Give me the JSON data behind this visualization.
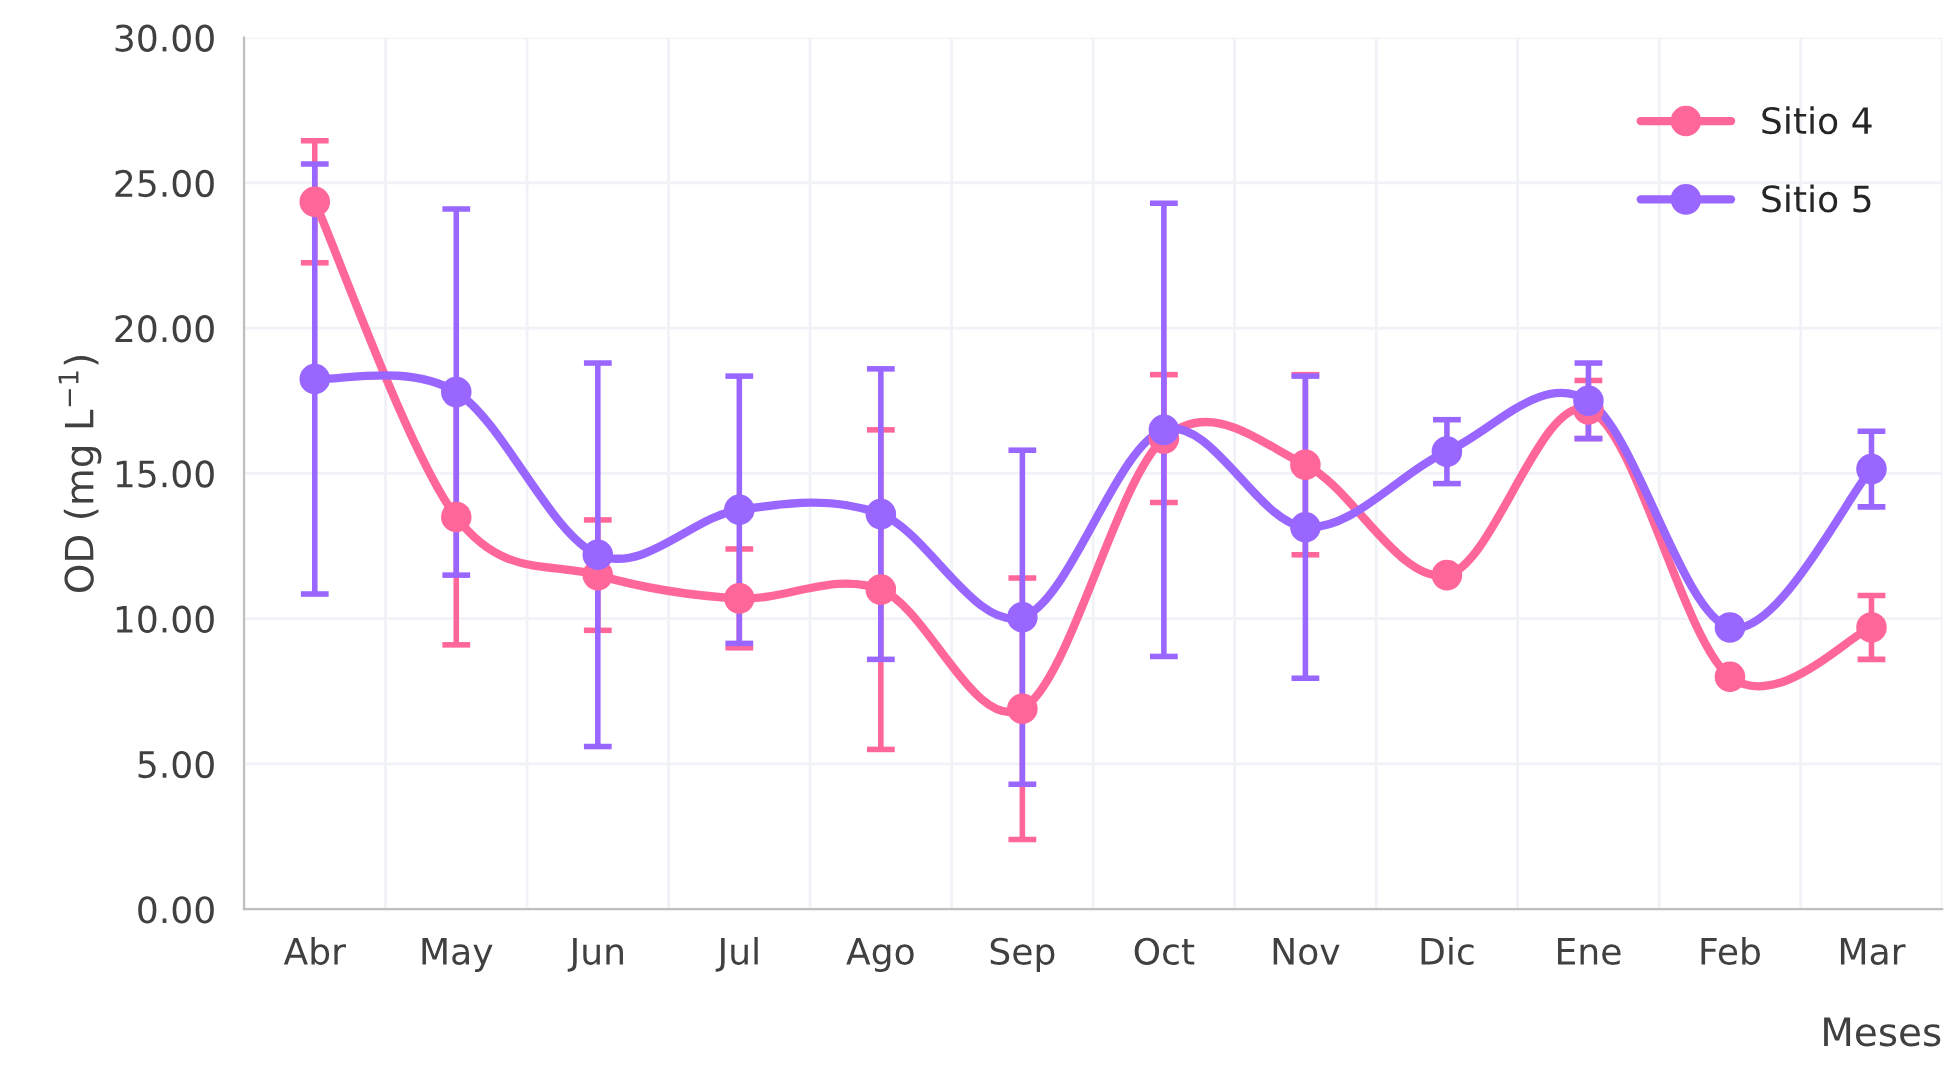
{
  "chart_data": {
    "type": "line",
    "xlabel": "Meses",
    "ylabel": "OD (mg L$^{−1}$)",
    "categories": [
      "Abr",
      "May",
      "Jun",
      "Jul",
      "Ago",
      "Sep",
      "Oct",
      "Nov",
      "Dic",
      "Ene",
      "Feb",
      "Mar"
    ],
    "ylim": [
      0,
      30
    ],
    "yticks": [
      {
        "value": 0,
        "label": "0.00"
      },
      {
        "value": 5,
        "label": "5.00"
      },
      {
        "value": 10,
        "label": "10.00"
      },
      {
        "value": 15,
        "label": "15.00"
      },
      {
        "value": 20,
        "label": "20.00"
      },
      {
        "value": 25,
        "label": "25.00"
      },
      {
        "value": 30,
        "label": "30.00"
      }
    ],
    "grid": true,
    "legend": "top right",
    "marker": "circle",
    "line_style": "solid",
    "series": [
      {
        "name": "Sitio 4",
        "color": "#ff6699",
        "values": [
          24.35,
          13.5,
          11.5,
          10.7,
          11.0,
          6.9,
          16.2,
          15.3,
          11.5,
          17.2,
          8.0,
          9.7
        ],
        "errors": [
          2.1,
          4.4,
          1.9,
          1.7,
          5.5,
          4.5,
          2.2,
          3.1,
          null,
          1.0,
          null,
          1.1
        ]
      },
      {
        "name": "Sitio 5",
        "color": "#9966ff",
        "values": [
          18.25,
          17.8,
          12.2,
          13.75,
          13.6,
          10.05,
          16.5,
          13.15,
          15.75,
          17.5,
          9.7,
          15.15
        ],
        "errors": [
          7.4,
          6.3,
          6.6,
          4.6,
          5.0,
          5.75,
          7.8,
          5.2,
          1.1,
          1.3,
          null,
          1.3
        ]
      }
    ]
  }
}
